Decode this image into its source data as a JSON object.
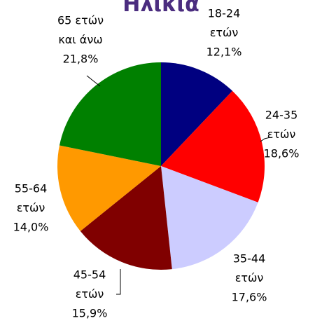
{
  "chart_data": {
    "type": "pie",
    "title": "Ηλικία",
    "categories": [
      [
        "18-24",
        "ετών"
      ],
      [
        "24-35",
        "ετών"
      ],
      [
        "35-44",
        "ετών"
      ],
      [
        "45-54",
        "ετών"
      ],
      [
        "55-64",
        "ετών"
      ],
      [
        "65 ετών",
        "και άνω"
      ]
    ],
    "values": [
      12.1,
      18.6,
      17.6,
      15.9,
      14.0,
      21.8
    ],
    "value_labels": [
      "12,1%",
      "18,6%",
      "17,6%",
      "15,9%",
      "14,0%",
      "21,8%"
    ],
    "colors": [
      "#000080",
      "#ff0000",
      "#ccccff",
      "#800000",
      "#ff9900",
      "#008000"
    ]
  }
}
